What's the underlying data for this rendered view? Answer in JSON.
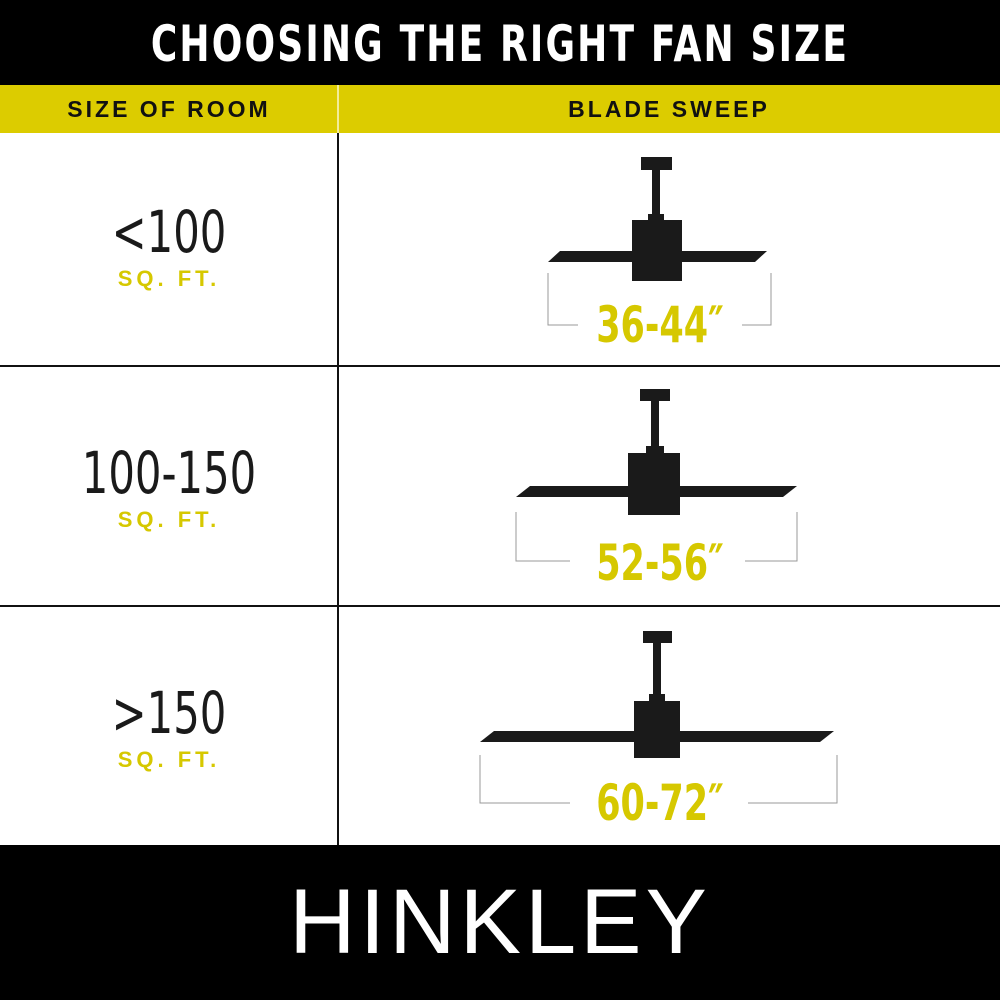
{
  "title": "CHOOSING THE RIGHT FAN SIZE",
  "headers": {
    "room": "SIZE OF ROOM",
    "sweep": "BLADE SWEEP"
  },
  "rows": [
    {
      "room": "<100",
      "unit": "SQ. FT.",
      "sweep": "36-44″"
    },
    {
      "room": "100-150",
      "unit": "SQ. FT.",
      "sweep": "52-56″"
    },
    {
      "room": ">150",
      "unit": "SQ. FT.",
      "sweep": "60-72″"
    }
  ],
  "brand": "HINKLEY",
  "colors": {
    "accent": "#dccc00",
    "dark": "#000000",
    "fan": "#1a1a1a"
  }
}
